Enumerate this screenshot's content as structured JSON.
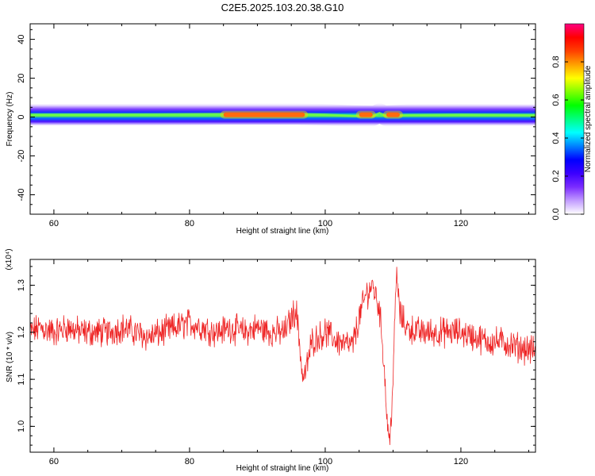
{
  "title": "C2E5.2025.103.20.38.G10",
  "chart_data": [
    {
      "type": "heatmap",
      "xlabel": "Height of straight line (km)",
      "ylabel": "Frequency (Hz)",
      "xlim": [
        56.5,
        131
      ],
      "ylim": [
        -50,
        48
      ],
      "xticks": [
        "60",
        "80",
        "100",
        "120"
      ],
      "yticks": [
        "-40",
        "-20",
        "0",
        "20",
        "40"
      ],
      "colorbar": {
        "label": "Normalized spectral amplitude",
        "range": [
          0,
          1
        ],
        "ticks": [
          "0.0",
          "0.2",
          "0.4",
          "0.6",
          "0.8"
        ],
        "colors": [
          "#ffffff",
          "#c29cff",
          "#7b2cff",
          "#3b00ff",
          "#0000ff",
          "#0080ff",
          "#00ffff",
          "#00ff80",
          "#00ff00",
          "#80ff00",
          "#ffff00",
          "#ffa000",
          "#ff4000",
          "#ff0000",
          "#ff0080"
        ]
      },
      "band": {
        "center_hz": [
          [
            56.5,
            1.2
          ],
          [
            75,
            1.3
          ],
          [
            85,
            1.5
          ],
          [
            96,
            1.5
          ],
          [
            100,
            1.2
          ],
          [
            104,
            0.6
          ],
          [
            107,
            0.4
          ],
          [
            108,
            2.0
          ],
          [
            109,
            0.5
          ],
          [
            112,
            1.0
          ],
          [
            120,
            1.2
          ],
          [
            131,
            1.0
          ]
        ],
        "high_amplitude_segments_km": [
          [
            85,
            97
          ],
          [
            105,
            107
          ],
          [
            109,
            111
          ]
        ]
      }
    },
    {
      "type": "line",
      "xlabel": "Height of straight line (km)",
      "ylabel": "SNR (10 * v/v)",
      "y_multiplier": "(x10⁴)",
      "xlim": [
        56.5,
        131
      ],
      "ylim": [
        0.945,
        1.355
      ],
      "xticks": [
        "60",
        "80",
        "100",
        "120"
      ],
      "yticks": [
        "1.0",
        "1.1",
        "1.2",
        "1.3"
      ],
      "color": "#ee2222",
      "x": [
        56.5,
        58,
        60,
        62,
        64,
        66,
        68,
        70,
        72,
        74,
        76,
        78,
        80,
        82,
        84,
        86,
        88,
        90,
        92,
        94,
        95,
        95.7,
        96.2,
        96.7,
        97.2,
        98,
        100,
        102,
        104,
        105,
        106,
        107,
        108,
        108.6,
        109.1,
        109.5,
        110,
        110.5,
        111,
        112,
        114,
        116,
        118,
        120,
        122,
        124,
        126,
        128,
        131
      ],
      "y": [
        1.2,
        1.21,
        1.2,
        1.21,
        1.2,
        1.2,
        1.2,
        1.21,
        1.2,
        1.19,
        1.2,
        1.21,
        1.22,
        1.21,
        1.2,
        1.21,
        1.2,
        1.21,
        1.2,
        1.2,
        1.23,
        1.25,
        1.18,
        1.1,
        1.12,
        1.18,
        1.2,
        1.18,
        1.17,
        1.23,
        1.28,
        1.3,
        1.25,
        1.15,
        1.02,
        0.96,
        1.1,
        1.33,
        1.24,
        1.21,
        1.2,
        1.2,
        1.2,
        1.2,
        1.19,
        1.18,
        1.18,
        1.17,
        1.16
      ]
    }
  ]
}
